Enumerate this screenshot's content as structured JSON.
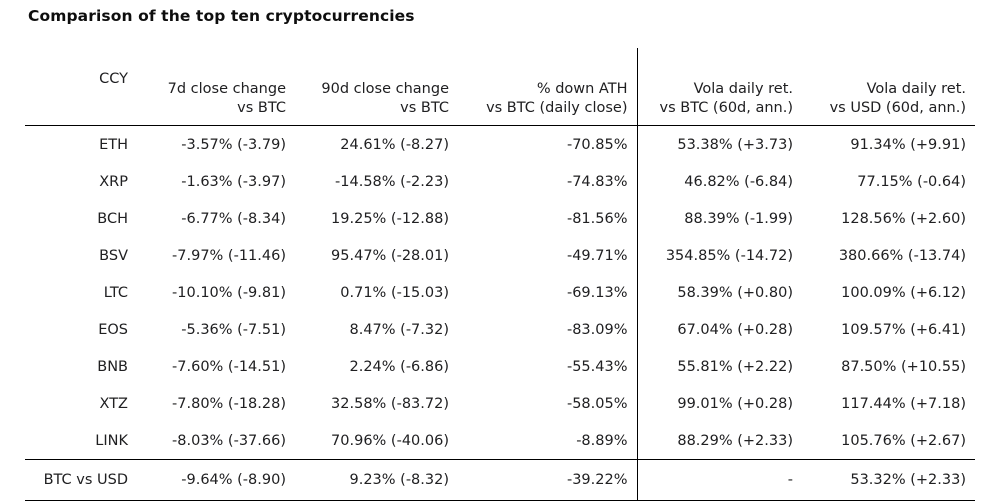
{
  "title": "Comparison of the top ten cryptocurrencies",
  "colors": {
    "background": "#ffffff",
    "text": "#202022",
    "rule_lines": "#000000"
  },
  "chart_data": {
    "type": "table",
    "title": "Comparison of the top ten cryptocurrencies",
    "columns": [
      {
        "line1": "CCY",
        "line2": ""
      },
      {
        "line1": "7d close change",
        "line2": "vs BTC"
      },
      {
        "line1": "90d close change",
        "line2": "vs BTC"
      },
      {
        "line1": "% down ATH",
        "line2": "vs BTC (daily close)"
      },
      {
        "line1": "Vola daily ret.",
        "line2": "vs BTC (60d, ann.)"
      },
      {
        "line1": "Vola daily ret.",
        "line2": "vs USD (60d, ann.)"
      }
    ],
    "rows": [
      [
        "ETH",
        "-3.57% (-3.79)",
        "24.61% (-8.27)",
        "-70.85%",
        "53.38% (+3.73)",
        "91.34% (+9.91)"
      ],
      [
        "XRP",
        "-1.63% (-3.97)",
        "-14.58% (-2.23)",
        "-74.83%",
        "46.82% (-6.84)",
        "77.15% (-0.64)"
      ],
      [
        "BCH",
        "-6.77% (-8.34)",
        "19.25% (-12.88)",
        "-81.56%",
        "88.39% (-1.99)",
        "128.56% (+2.60)"
      ],
      [
        "BSV",
        "-7.97% (-11.46)",
        "95.47% (-28.01)",
        "-49.71%",
        "354.85% (-14.72)",
        "380.66% (-13.74)"
      ],
      [
        "LTC",
        "-10.10% (-9.81)",
        "0.71% (-15.03)",
        "-69.13%",
        "58.39% (+0.80)",
        "100.09% (+6.12)"
      ],
      [
        "EOS",
        "-5.36% (-7.51)",
        "8.47% (-7.32)",
        "-83.09%",
        "67.04% (+0.28)",
        "109.57% (+6.41)"
      ],
      [
        "BNB",
        "-7.60% (-14.51)",
        "2.24% (-6.86)",
        "-55.43%",
        "55.81% (+2.22)",
        "87.50% (+10.55)"
      ],
      [
        "XTZ",
        "-7.80% (-18.28)",
        "32.58% (-83.72)",
        "-58.05%",
        "99.01% (+0.28)",
        "117.44% (+7.18)"
      ],
      [
        "LINK",
        "-8.03% (-37.66)",
        "70.96% (-40.06)",
        "-8.89%",
        "88.29% (+2.33)",
        "105.76% (+2.67)"
      ]
    ],
    "footer_row": [
      "BTC vs USD",
      "-9.64% (-8.90)",
      "9.23% (-8.32)",
      "-39.22%",
      "-",
      "53.32% (+2.33)"
    ]
  }
}
